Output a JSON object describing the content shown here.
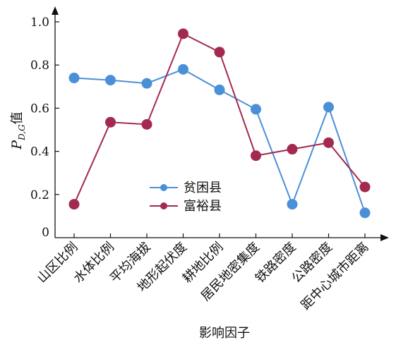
{
  "chart_data": {
    "type": "line",
    "categories": [
      "山区比例",
      "水体比例",
      "平均海拔",
      "地形起伏度",
      "耕地比例",
      "居民地密集度",
      "铁路密度",
      "公路密度",
      "距中心城市距离"
    ],
    "series": [
      {
        "name": "贫困县",
        "color": "#4a90d9",
        "values": [
          0.74,
          0.73,
          0.715,
          0.78,
          0.685,
          0.595,
          0.155,
          0.605,
          0.115
        ]
      },
      {
        "name": "富裕县",
        "color": "#a3294f",
        "values": [
          0.155,
          0.535,
          0.525,
          0.945,
          0.86,
          0.38,
          0.41,
          0.44,
          0.235
        ]
      }
    ],
    "yticks": [
      "0",
      "0.2",
      "0.4",
      "0.6",
      "0.8",
      "1.0"
    ],
    "ylim": [
      0,
      1.0
    ],
    "xlabel": "影响因子",
    "ylabel": {
      "main": "P",
      "sub": "D,G",
      "tail": "值"
    },
    "legend": "center"
  }
}
